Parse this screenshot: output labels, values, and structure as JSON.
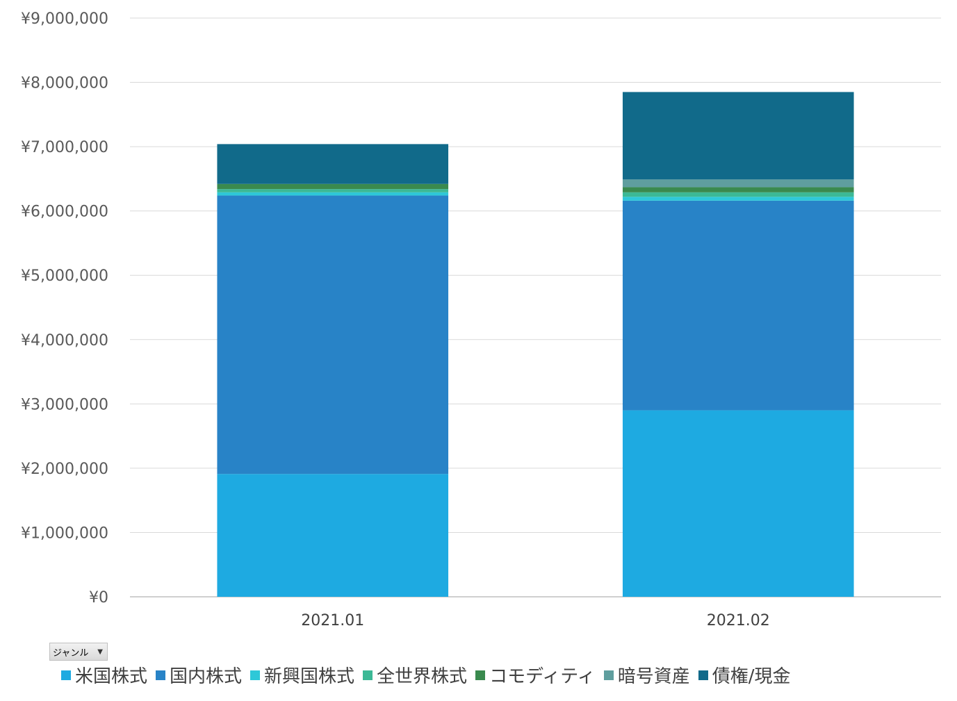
{
  "chart_data": {
    "type": "bar",
    "stacked": true,
    "categories": [
      "2021.01",
      "2021.02"
    ],
    "yticks": [
      "¥0",
      "¥1,000,000",
      "¥2,000,000",
      "¥3,000,000",
      "¥4,000,000",
      "¥5,000,000",
      "¥6,000,000",
      "¥7,000,000",
      "¥8,000,000",
      "¥9,000,000"
    ],
    "ylim": [
      0,
      9000000
    ],
    "grid": true,
    "legend_position": "bottom",
    "series": [
      {
        "name": "米国株式",
        "color": "#1eaae1",
        "values": [
          1910000,
          2900000
        ]
      },
      {
        "name": "国内株式",
        "color": "#2883c7",
        "values": [
          4330000,
          3260000
        ]
      },
      {
        "name": "新興国株式",
        "color": "#2ec8d8",
        "values": [
          50000,
          60000
        ]
      },
      {
        "name": "全世界株式",
        "color": "#3cb996",
        "values": [
          50000,
          70000
        ]
      },
      {
        "name": "コモディティ",
        "color": "#3a8a4e",
        "values": [
          80000,
          80000
        ]
      },
      {
        "name": "暗号資産",
        "color": "#5f9e9e",
        "values": [
          0,
          120000
        ]
      },
      {
        "name": "債権/現金",
        "color": "#116a8a",
        "values": [
          620000,
          1360000
        ]
      }
    ]
  },
  "filter_button": {
    "label": "ジャンル",
    "icon": "dropdown-arrow-icon"
  }
}
